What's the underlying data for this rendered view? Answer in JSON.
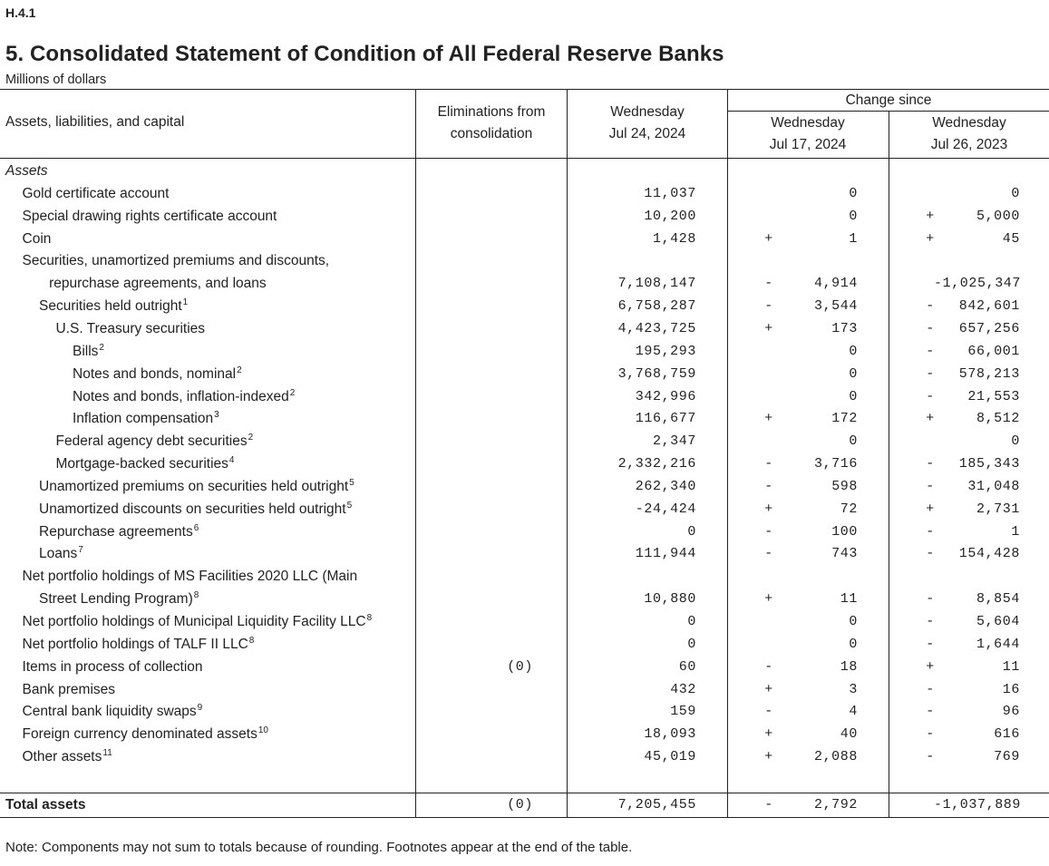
{
  "code": "H.4.1",
  "title": "5. Consolidated Statement of Condition of All Federal Reserve Banks",
  "units": "Millions of dollars",
  "header": {
    "col_label": "Assets, liabilities, and capital",
    "elim_line1": "Eliminations from",
    "elim_line2": "consolidation",
    "wed_line1": "Wednesday",
    "wed_line2": "Jul 24, 2024",
    "change_since": "Change since",
    "c1_line1": "Wednesday",
    "c1_line2": "Jul 17, 2024",
    "c2_line1": "Wednesday",
    "c2_line2": "Jul 26, 2023"
  },
  "rows": [
    {
      "label": "Assets",
      "style": "italic",
      "indent": 0
    },
    {
      "label": "Gold certificate account",
      "indent": 1,
      "value": "11,037",
      "c1": "0",
      "c2": "0"
    },
    {
      "label": "Special drawing rights certificate account",
      "indent": 1,
      "value": "10,200",
      "c1": "0",
      "s2": "+",
      "c2": "5,000"
    },
    {
      "label": "Coin",
      "indent": 1,
      "value": "1,428",
      "s1": "+",
      "c1": "1",
      "s2": "+",
      "c2": "45"
    },
    {
      "label": "Securities, unamortized premiums and discounts,",
      "indent": 1
    },
    {
      "label": "repurchase agreements, and loans",
      "indent": 2.6,
      "value": "7,108,147",
      "s1": "-",
      "c1": "4,914",
      "c2": "-1,025,347"
    },
    {
      "label": "Securities held outright",
      "sup": "1",
      "indent": 2,
      "value": "6,758,287",
      "s1": "-",
      "c1": "3,544",
      "s2": "-",
      "c2": "842,601"
    },
    {
      "label": "U.S. Treasury securities",
      "indent": 3,
      "value": "4,423,725",
      "s1": "+",
      "c1": "173",
      "s2": "-",
      "c2": "657,256"
    },
    {
      "label": "Bills",
      "sup": "2",
      "indent": 4,
      "value": "195,293",
      "c1": "0",
      "s2": "-",
      "c2": "66,001"
    },
    {
      "label": "Notes and bonds, nominal",
      "sup": "2",
      "indent": 4,
      "value": "3,768,759",
      "c1": "0",
      "s2": "-",
      "c2": "578,213"
    },
    {
      "label": "Notes and bonds, inflation-indexed",
      "sup": "2",
      "indent": 4,
      "value": "342,996",
      "c1": "0",
      "s2": "-",
      "c2": "21,553"
    },
    {
      "label": "Inflation compensation",
      "sup": "3",
      "indent": 4,
      "value": "116,677",
      "s1": "+",
      "c1": "172",
      "s2": "+",
      "c2": "8,512"
    },
    {
      "label": "Federal agency debt securities",
      "sup": "2",
      "indent": 3,
      "value": "2,347",
      "c1": "0",
      "c2": "0"
    },
    {
      "label": "Mortgage-backed securities",
      "sup": "4",
      "indent": 3,
      "value": "2,332,216",
      "s1": "-",
      "c1": "3,716",
      "s2": "-",
      "c2": "185,343"
    },
    {
      "label": "Unamortized premiums on securities held outright",
      "sup": "5",
      "indent": 2,
      "value": "262,340",
      "s1": "-",
      "c1": "598",
      "s2": "-",
      "c2": "31,048"
    },
    {
      "label": "Unamortized discounts on securities held outright",
      "sup": "5",
      "indent": 2,
      "value": "-24,424",
      "s1": "+",
      "c1": "72",
      "s2": "+",
      "c2": "2,731"
    },
    {
      "label": "Repurchase agreements",
      "sup": "6",
      "indent": 2,
      "value": "0",
      "s1": "-",
      "c1": "100",
      "s2": "-",
      "c2": "1"
    },
    {
      "label": "Loans",
      "sup": "7",
      "indent": 2,
      "value": "111,944",
      "s1": "-",
      "c1": "743",
      "s2": "-",
      "c2": "154,428"
    },
    {
      "label": "Net portfolio holdings of MS Facilities 2020 LLC (Main",
      "indent": 1
    },
    {
      "label": "Street Lending Program)",
      "sup": "8",
      "indent": 2,
      "value": "10,880",
      "s1": "+",
      "c1": "11",
      "s2": "-",
      "c2": "8,854"
    },
    {
      "label": "Net portfolio holdings of Municipal Liquidity Facility LLC",
      "sup": "8",
      "indent": 1,
      "value": "0",
      "c1": "0",
      "s2": "-",
      "c2": "5,604"
    },
    {
      "label": "Net portfolio holdings of TALF II LLC",
      "sup": "8",
      "indent": 1,
      "value": "0",
      "c1": "0",
      "s2": "-",
      "c2": "1,644"
    },
    {
      "label": "Items in process of collection",
      "indent": 1,
      "elim": "(0)",
      "value": "60",
      "s1": "-",
      "c1": "18",
      "s2": "+",
      "c2": "11"
    },
    {
      "label": "Bank premises",
      "indent": 1,
      "value": "432",
      "s1": "+",
      "c1": "3",
      "s2": "-",
      "c2": "16"
    },
    {
      "label": "Central bank liquidity swaps",
      "sup": "9",
      "indent": 1,
      "value": "159",
      "s1": "-",
      "c1": "4",
      "s2": "-",
      "c2": "96"
    },
    {
      "label": "Foreign currency denominated assets",
      "sup": "10",
      "indent": 1,
      "value": "18,093",
      "s1": "+",
      "c1": "40",
      "s2": "-",
      "c2": "616"
    },
    {
      "label": "Other assets",
      "sup": "11",
      "indent": 1,
      "value": "45,019",
      "s1": "+",
      "c1": "2,088",
      "s2": "-",
      "c2": "769"
    }
  ],
  "total": {
    "label": "Total assets",
    "elim": "(0)",
    "value": "7,205,455",
    "s1": "-",
    "c1": "2,792",
    "c2": "-1,037,889"
  },
  "note": "Note: Components may not sum to totals because of rounding. Footnotes appear at the end of the table."
}
